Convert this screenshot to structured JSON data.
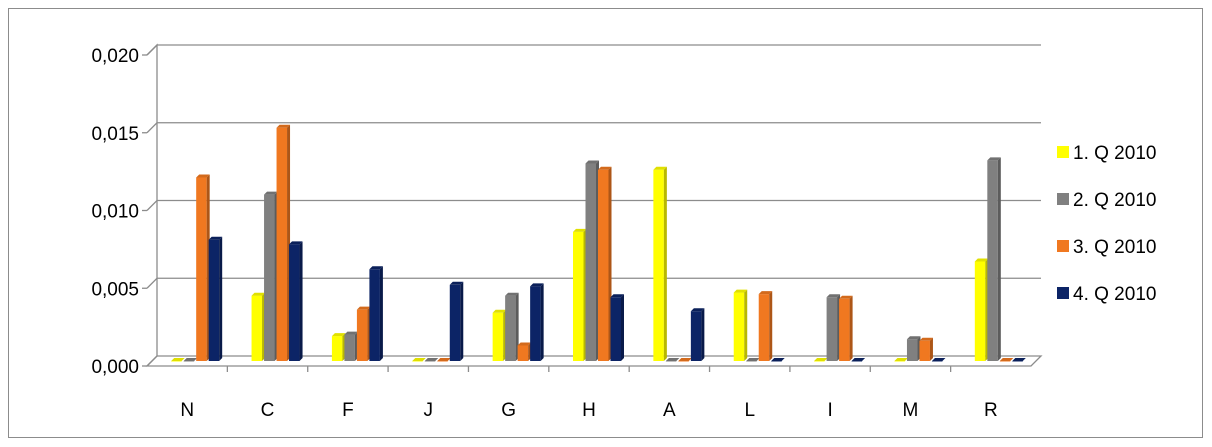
{
  "chart_data": {
    "type": "bar",
    "categories": [
      "N",
      "C",
      "F",
      "J",
      "G",
      "H",
      "A",
      "L",
      "I",
      "M",
      "R"
    ],
    "series": [
      {
        "name": "1. Q 2010",
        "color": "#ffff00",
        "values": [
          0.0,
          0.0042,
          0.0016,
          0.0,
          0.0031,
          0.0083,
          0.0123,
          0.0044,
          0.0,
          0.0,
          0.0064
        ]
      },
      {
        "name": "2. Q 2010",
        "color": "#808080",
        "values": [
          0.0,
          0.0107,
          0.0017,
          0.0,
          0.0042,
          0.0127,
          0.0,
          0.0,
          0.0041,
          0.0014,
          0.0129
        ]
      },
      {
        "name": "3. Q 2010",
        "color": "#f07820",
        "values": [
          0.0118,
          0.015,
          0.0033,
          0.0,
          0.001,
          0.0123,
          0.0,
          0.0043,
          0.004,
          0.0013,
          0.0
        ]
      },
      {
        "name": "4. Q 2010",
        "color": "#0c2466",
        "values": [
          0.0078,
          0.0075,
          0.0059,
          0.0049,
          0.0048,
          0.0041,
          0.0032,
          0.0,
          0.0,
          0.0,
          0.0
        ]
      }
    ],
    "y_ticks": [
      "0,000",
      "0,005",
      "0,010",
      "0,015",
      "0,020"
    ],
    "ylim": [
      0,
      0.02
    ],
    "grid": true,
    "legend_position": "right",
    "title": "",
    "xlabel": "",
    "ylabel": ""
  }
}
